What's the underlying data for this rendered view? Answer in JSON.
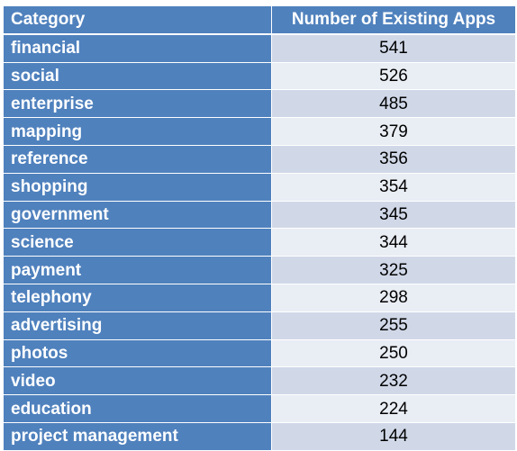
{
  "table": {
    "headers": [
      "Category",
      "Number of Existing Apps"
    ],
    "rows": [
      {
        "category": "financial",
        "count": "541"
      },
      {
        "category": "social",
        "count": "526"
      },
      {
        "category": "enterprise",
        "count": "485"
      },
      {
        "category": "mapping",
        "count": "379"
      },
      {
        "category": "reference",
        "count": "356"
      },
      {
        "category": "shopping",
        "count": "354"
      },
      {
        "category": "government",
        "count": "345"
      },
      {
        "category": "science",
        "count": "344"
      },
      {
        "category": "payment",
        "count": "325"
      },
      {
        "category": "telephony",
        "count": "298"
      },
      {
        "category": "advertising",
        "count": "255"
      },
      {
        "category": "photos",
        "count": "250"
      },
      {
        "category": "video",
        "count": "232"
      },
      {
        "category": "education",
        "count": "224"
      },
      {
        "category": "project management",
        "count": "144"
      }
    ]
  },
  "colors": {
    "header_bg": "#4f81bd",
    "category_bg": "#4f81bd",
    "row_band_dark": "#d0d8e8",
    "row_band_light": "#e9edf4"
  }
}
